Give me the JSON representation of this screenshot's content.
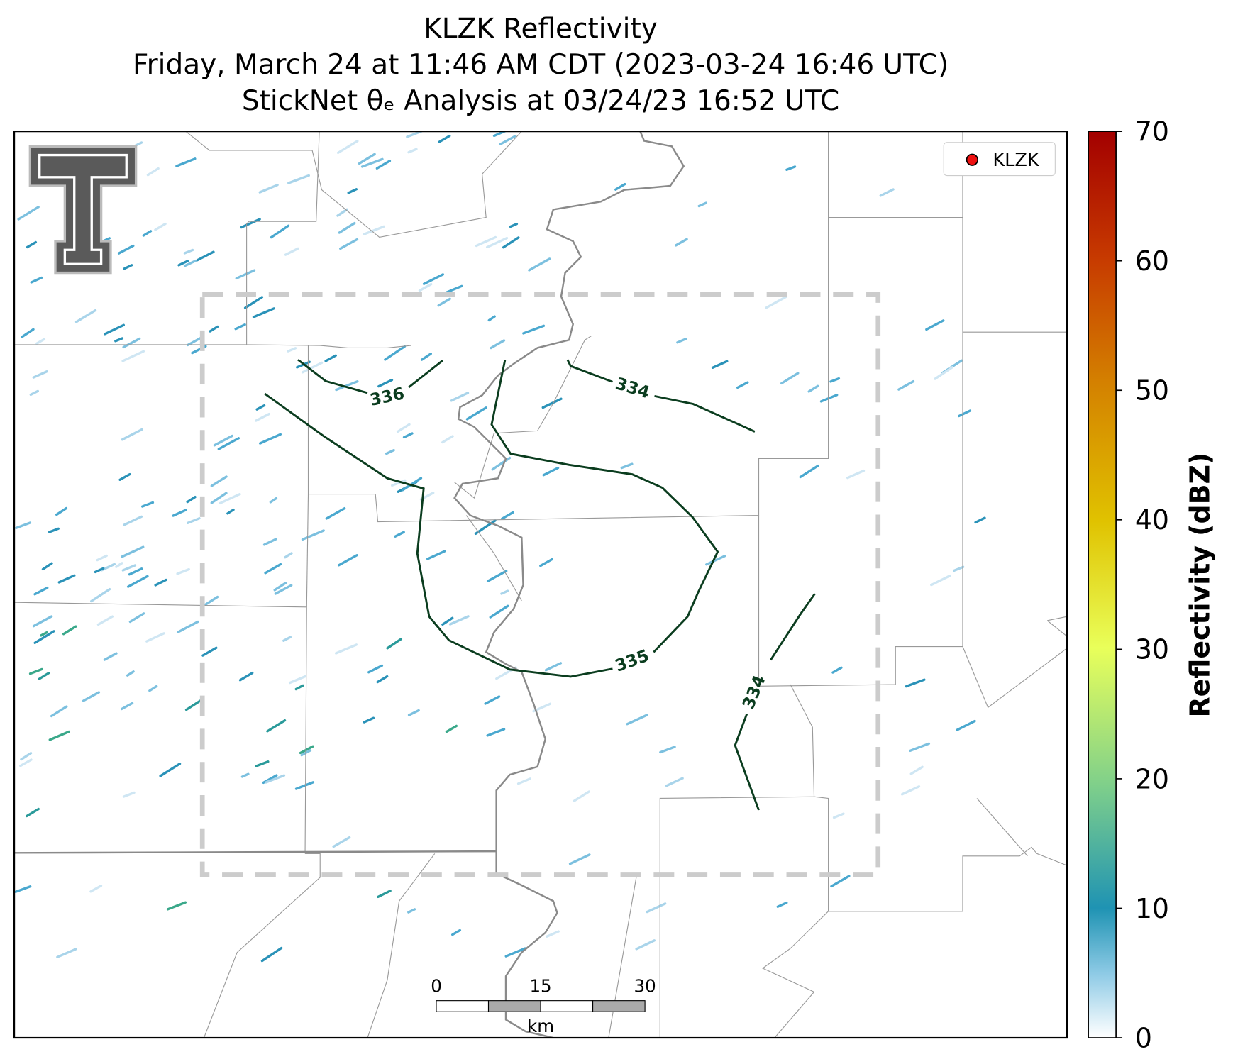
{
  "title": [
    "KLZK Reflectivity",
    "Friday, March 24 at 11:46 AM CDT (2023-03-24 16:46 UTC)",
    "StickNet θₑ Analysis at 03/24/23 16:52 UTC"
  ],
  "legend": {
    "label": "KLZK",
    "color": "#ee1111",
    "corner": "upper right"
  },
  "contour_labels": [
    "336",
    "334",
    "335",
    "334"
  ],
  "scale_bar": {
    "ticks": [
      "0",
      "15",
      "30"
    ],
    "unit": "km"
  },
  "colorbar": {
    "label": "Reflectivity (dBZ)",
    "lim": [
      0,
      70
    ],
    "ticks": [
      0,
      10,
      20,
      30,
      40,
      50,
      60,
      70
    ]
  }
}
